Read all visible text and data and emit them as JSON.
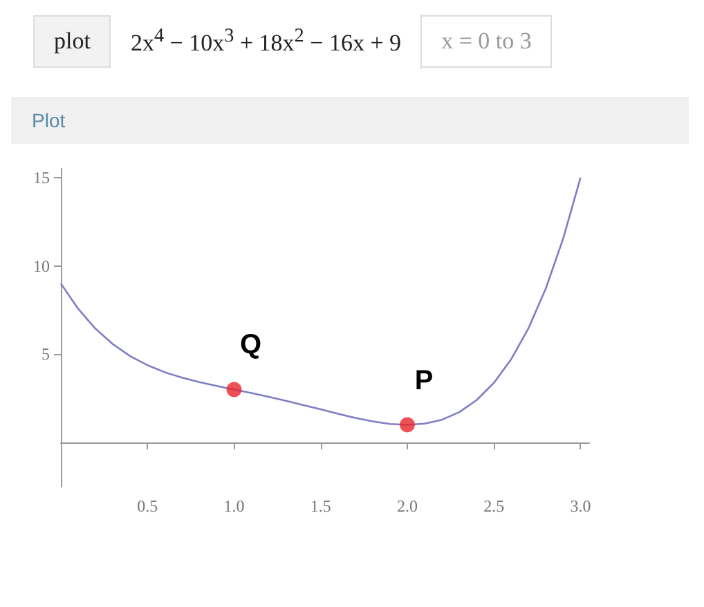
{
  "chart_data": {
    "type": "line",
    "title": "Plot",
    "annotations": [
      "plot",
      "2x$^{4}$ − 10x$^{3}$ + 18x$^{2}$ − 16x + 9",
      "x = 0 to 3",
      {
        "text": "Q",
        "x": 1,
        "y": 3
      },
      {
        "text": "P",
        "x": 2,
        "y": 1
      }
    ],
    "x": [
      0,
      0.1,
      0.2,
      0.3,
      0.4,
      0.5,
      0.6,
      0.7,
      0.8,
      0.9,
      1,
      1.1,
      1.2,
      1.3,
      1.4,
      1.5,
      1.6,
      1.7,
      1.8,
      1.9,
      2,
      2.1,
      2.2,
      2.3,
      2.4,
      2.5,
      2.6,
      2.7,
      2.8,
      2.9,
      3
    ],
    "series": [
      {
        "color": "#7f7dc4",
        "values": [
          9,
          7.57,
          6.44,
          5.57,
          4.89,
          4.38,
          3.98,
          3.67,
          3.42,
          3.2,
          3,
          2.8,
          2.59,
          2.36,
          2.12,
          1.88,
          1.63,
          1.39,
          1.2,
          1.05,
          1,
          1.07,
          1.29,
          1.72,
          2.4,
          3.38,
          4.72,
          6.48,
          8.73,
          11.55,
          15
        ]
      },
      {
        "type": "scatter",
        "color": "#e8242b",
        "x": [
          1,
          2
        ],
        "values": [
          3,
          1
        ],
        "marker": "circle"
      }
    ],
    "xlim": [
      0,
      3.05
    ],
    "xticks": [
      0.5,
      {
        "value": 1,
        "label": "1.0"
      },
      1.5,
      {
        "value": 2,
        "label": "2.0"
      },
      2.5,
      {
        "value": 3,
        "label": "3.0"
      }
    ],
    "ylim": [
      -2.5,
      15.5
    ],
    "yticks": [
      5,
      10,
      15
    ],
    "grid": false
  }
}
